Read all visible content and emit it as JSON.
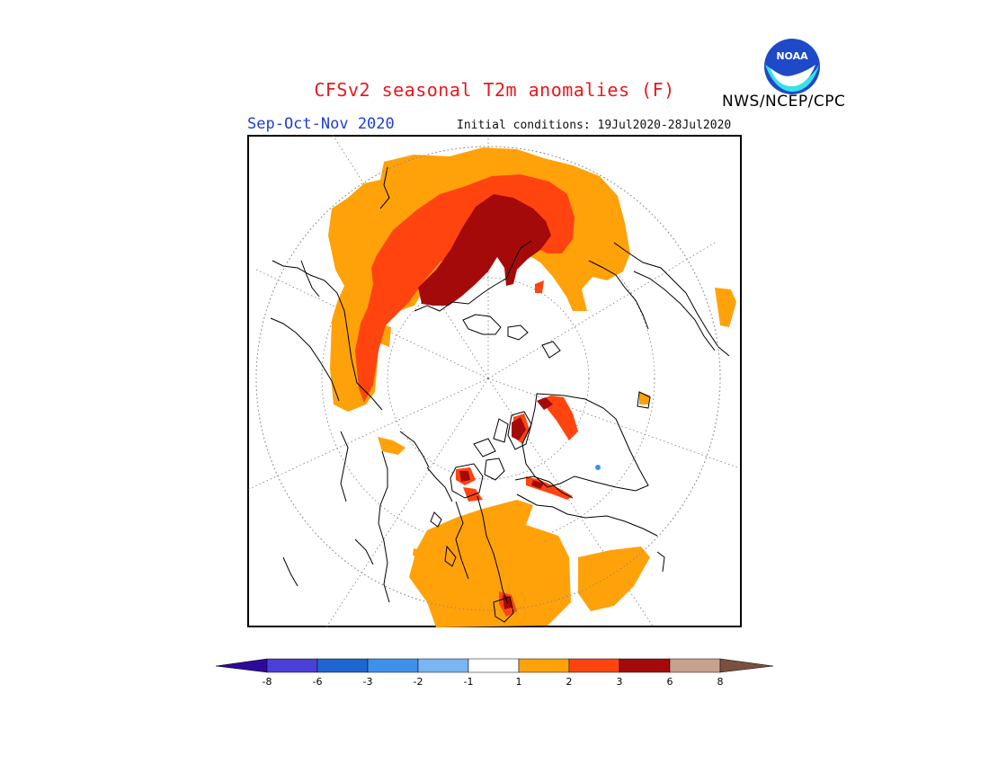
{
  "title": "CFSv2 seasonal T2m anomalies (F)",
  "season": "Sep-Oct-Nov 2020",
  "initial_conditions": "Initial conditions: 19Jul2020-28Jul2020",
  "agency": "NWS/NCEP/CPC",
  "logo_text": "NOAA",
  "colorbar": {
    "labels": [
      "-8",
      "-6",
      "-3",
      "-2",
      "-1",
      "1",
      "2",
      "3",
      "6",
      "8"
    ],
    "colors": [
      "#2e0a9c",
      "#4a3fd6",
      "#1f66d3",
      "#3e91ea",
      "#79b6f2",
      "#ffffff",
      "#ffa20a",
      "#ff4410",
      "#a50a0a",
      "#c8a28f",
      "#7a5040"
    ]
  },
  "legend_colors": {
    "warm1": "#ffa20a",
    "warm2": "#ff4410",
    "warm3": "#a50a0a"
  }
}
